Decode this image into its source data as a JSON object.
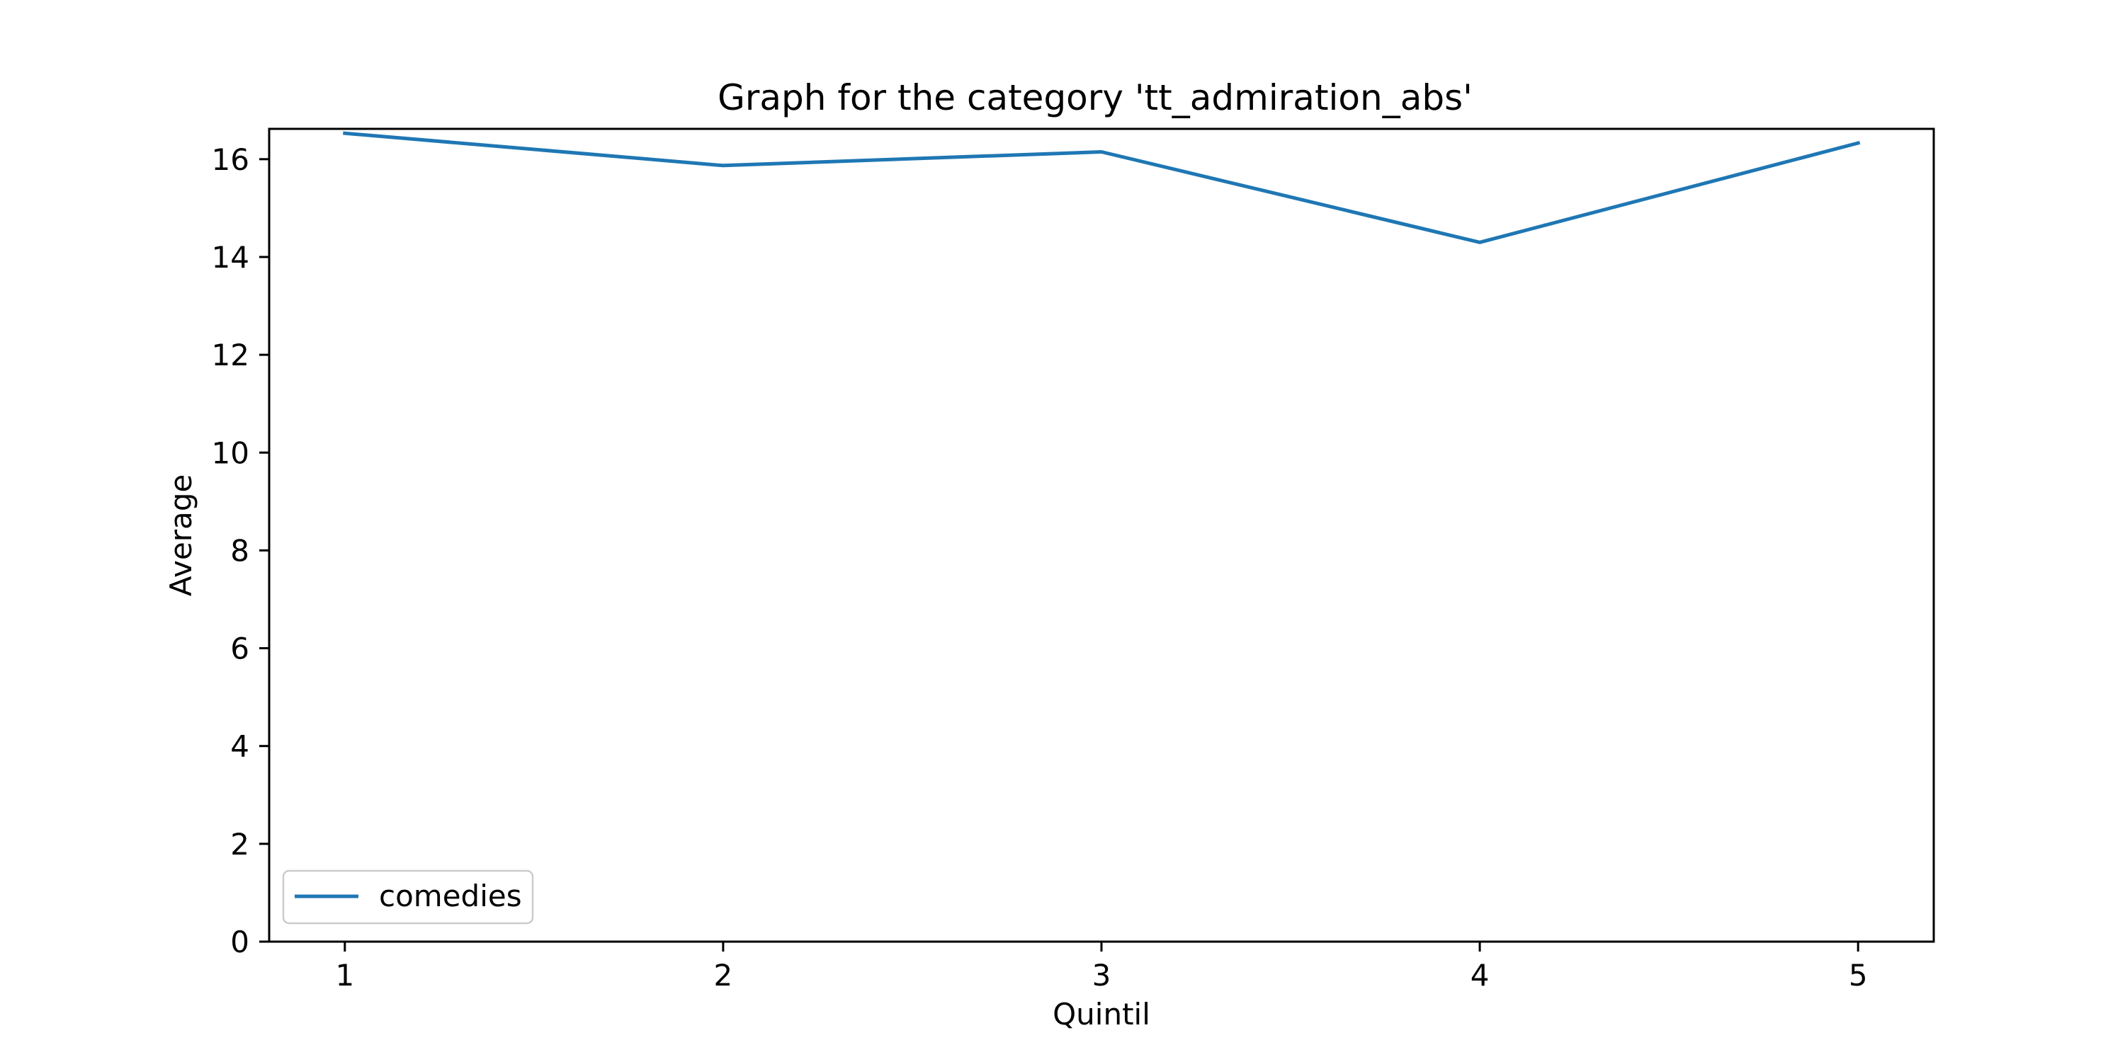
{
  "chart_data": {
    "type": "line",
    "title": "Graph for the category 'tt_admiration_abs'",
    "xlabel": "Quintil",
    "ylabel": "Average",
    "x": [
      1,
      2,
      3,
      4,
      5
    ],
    "xticks": [
      "1",
      "2",
      "3",
      "4",
      "5"
    ],
    "xlim": [
      0.8,
      5.2
    ],
    "yticks": [
      "0",
      "2",
      "4",
      "6",
      "8",
      "10",
      "12",
      "14",
      "16"
    ],
    "ylim": [
      0,
      16.62
    ],
    "grid": false,
    "legend_position": "lower-left",
    "series": [
      {
        "name": "comedies",
        "color": "#1f77b4",
        "values": [
          16.53,
          15.87,
          16.15,
          14.3,
          16.33
        ]
      }
    ]
  }
}
